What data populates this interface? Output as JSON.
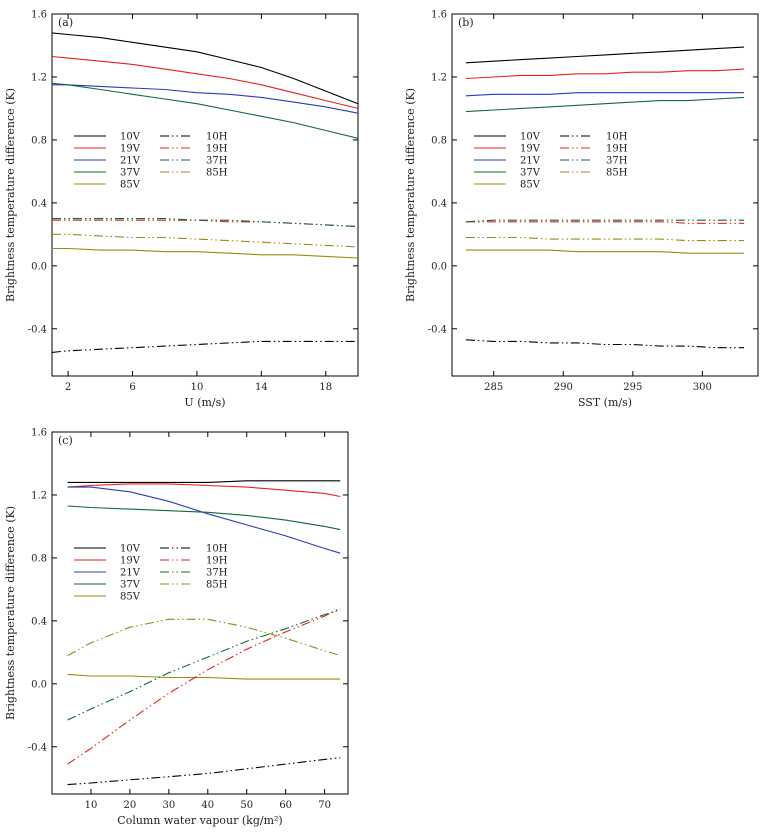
{
  "colors": {
    "10V": "#000000",
    "10H": "#000000",
    "19V": "#e8201c",
    "19H": "#e8201c",
    "21V": "#2b3bbf",
    "37V": "#0f6b3a",
    "37H": "#0f6b3a",
    "85V": "#9a8a10",
    "85H": "#9a8a10"
  },
  "chart_data": [
    {
      "type": "line",
      "panel": "(a)",
      "title": "",
      "xlabel": "U (m/s)",
      "ylabel": "Brightness temperature difference (K)",
      "xlim": [
        1,
        20
      ],
      "ylim": [
        -0.7,
        1.6
      ],
      "xticks": [
        2,
        6,
        10,
        14,
        18
      ],
      "yticks": [
        -0.4,
        0.0,
        0.4,
        0.8,
        1.2,
        1.6
      ],
      "ytick_labels": [
        "-0.4",
        "0.0",
        "0.4",
        "0.8",
        "1.2",
        "1.6"
      ],
      "x": [
        1,
        2,
        4,
        6,
        8,
        10,
        12,
        14,
        16,
        18,
        20
      ],
      "legend": [
        "10V",
        "19V",
        "21V",
        "37V",
        "85V",
        "10H",
        "19H",
        "37H",
        "85H"
      ],
      "series": [
        {
          "name": "10V",
          "style": "solid",
          "values": [
            1.48,
            1.47,
            1.45,
            1.42,
            1.39,
            1.36,
            1.31,
            1.26,
            1.19,
            1.11,
            1.03
          ]
        },
        {
          "name": "19V",
          "style": "solid",
          "values": [
            1.33,
            1.32,
            1.3,
            1.28,
            1.25,
            1.22,
            1.19,
            1.15,
            1.1,
            1.05,
            1.0
          ]
        },
        {
          "name": "21V",
          "style": "solid",
          "values": [
            1.15,
            1.15,
            1.14,
            1.13,
            1.12,
            1.1,
            1.09,
            1.07,
            1.04,
            1.01,
            0.97
          ]
        },
        {
          "name": "37V",
          "style": "solid",
          "values": [
            1.16,
            1.15,
            1.12,
            1.09,
            1.06,
            1.03,
            0.99,
            0.95,
            0.91,
            0.86,
            0.81
          ]
        },
        {
          "name": "85V",
          "style": "solid",
          "values": [
            0.11,
            0.11,
            0.1,
            0.1,
            0.09,
            0.09,
            0.08,
            0.07,
            0.07,
            0.06,
            0.05
          ]
        },
        {
          "name": "10H",
          "style": "dash-dot-dot",
          "values": [
            -0.55,
            -0.54,
            -0.53,
            -0.52,
            -0.51,
            -0.5,
            -0.49,
            -0.48,
            -0.48,
            -0.48,
            -0.48
          ]
        },
        {
          "name": "19H",
          "style": "dash-dot-dot",
          "values": [
            0.29,
            0.29,
            0.29,
            0.29,
            0.29,
            0.29,
            0.28,
            0.28,
            0.27,
            0.26,
            0.25
          ]
        },
        {
          "name": "37H",
          "style": "dash-dot-dot",
          "values": [
            0.3,
            0.3,
            0.3,
            0.3,
            0.3,
            0.29,
            0.29,
            0.28,
            0.27,
            0.26,
            0.25
          ]
        },
        {
          "name": "85H",
          "style": "dash-dot-dot",
          "values": [
            0.2,
            0.2,
            0.19,
            0.18,
            0.18,
            0.17,
            0.16,
            0.15,
            0.14,
            0.13,
            0.12
          ]
        }
      ]
    },
    {
      "type": "line",
      "panel": "(b)",
      "title": "",
      "xlabel": "SST (m/s)",
      "ylabel": "Brightness temperature difference (K)",
      "xlim": [
        282,
        304
      ],
      "ylim": [
        -0.7,
        1.6
      ],
      "xticks": [
        285,
        290,
        295,
        300
      ],
      "yticks": [
        -0.4,
        0.0,
        0.4,
        0.8,
        1.2,
        1.6
      ],
      "ytick_labels": [
        "-0.4",
        "0.0",
        "0.4",
        "0.8",
        "1.2",
        "1.6"
      ],
      "x": [
        283,
        285,
        287,
        289,
        291,
        293,
        295,
        297,
        299,
        301,
        303
      ],
      "legend": [
        "10V",
        "19V",
        "21V",
        "37V",
        "85V",
        "10H",
        "19H",
        "37H",
        "85H"
      ],
      "series": [
        {
          "name": "10V",
          "style": "solid",
          "values": [
            1.29,
            1.3,
            1.31,
            1.32,
            1.33,
            1.34,
            1.35,
            1.36,
            1.37,
            1.38,
            1.39
          ]
        },
        {
          "name": "19V",
          "style": "solid",
          "values": [
            1.19,
            1.2,
            1.21,
            1.21,
            1.22,
            1.22,
            1.23,
            1.23,
            1.24,
            1.24,
            1.25
          ]
        },
        {
          "name": "21V",
          "style": "solid",
          "values": [
            1.08,
            1.09,
            1.09,
            1.09,
            1.1,
            1.1,
            1.1,
            1.1,
            1.1,
            1.1,
            1.1
          ]
        },
        {
          "name": "37V",
          "style": "solid",
          "values": [
            0.98,
            0.99,
            1.0,
            1.01,
            1.02,
            1.03,
            1.04,
            1.05,
            1.05,
            1.06,
            1.07
          ]
        },
        {
          "name": "85V",
          "style": "solid",
          "values": [
            0.1,
            0.1,
            0.1,
            0.1,
            0.09,
            0.09,
            0.09,
            0.09,
            0.08,
            0.08,
            0.08
          ]
        },
        {
          "name": "10H",
          "style": "dash-dot-dot",
          "values": [
            -0.47,
            -0.48,
            -0.48,
            -0.49,
            -0.49,
            -0.5,
            -0.5,
            -0.51,
            -0.51,
            -0.52,
            -0.52
          ]
        },
        {
          "name": "19H",
          "style": "dash-dot-dot",
          "values": [
            0.28,
            0.28,
            0.28,
            0.28,
            0.28,
            0.28,
            0.28,
            0.28,
            0.27,
            0.27,
            0.27
          ]
        },
        {
          "name": "37H",
          "style": "dash-dot-dot",
          "values": [
            0.28,
            0.29,
            0.29,
            0.29,
            0.29,
            0.29,
            0.29,
            0.29,
            0.29,
            0.29,
            0.29
          ]
        },
        {
          "name": "85H",
          "style": "dash-dot-dot",
          "values": [
            0.18,
            0.18,
            0.18,
            0.17,
            0.17,
            0.17,
            0.17,
            0.17,
            0.16,
            0.16,
            0.16
          ]
        }
      ]
    },
    {
      "type": "line",
      "panel": "(c)",
      "title": "",
      "xlabel": "Column water vapour (kg/m²)",
      "ylabel": "Brightness temperature difference (K)",
      "xlim": [
        0,
        76
      ],
      "ylim": [
        -0.7,
        1.6
      ],
      "xticks": [
        10,
        20,
        30,
        40,
        50,
        60,
        70
      ],
      "yticks": [
        -0.4,
        0.0,
        0.4,
        0.8,
        1.2,
        1.6
      ],
      "ytick_labels": [
        "-0.4",
        "0.0",
        "0.4",
        "0.8",
        "1.2",
        "1.6"
      ],
      "x": [
        4,
        10,
        20,
        30,
        40,
        50,
        60,
        70,
        74
      ],
      "legend": [
        "10V",
        "19V",
        "21V",
        "37V",
        "85V",
        "10H",
        "19H",
        "37H",
        "85H"
      ],
      "series": [
        {
          "name": "10V",
          "style": "solid",
          "values": [
            1.28,
            1.28,
            1.28,
            1.28,
            1.28,
            1.29,
            1.29,
            1.29,
            1.29
          ]
        },
        {
          "name": "19V",
          "style": "solid",
          "values": [
            1.25,
            1.26,
            1.27,
            1.27,
            1.26,
            1.25,
            1.23,
            1.21,
            1.19
          ]
        },
        {
          "name": "21V",
          "style": "solid",
          "values": [
            1.25,
            1.25,
            1.22,
            1.16,
            1.08,
            1.01,
            0.94,
            0.86,
            0.83
          ]
        },
        {
          "name": "37V",
          "style": "solid",
          "values": [
            1.13,
            1.12,
            1.11,
            1.1,
            1.09,
            1.07,
            1.04,
            1.0,
            0.98
          ]
        },
        {
          "name": "85V",
          "style": "solid",
          "values": [
            0.06,
            0.05,
            0.05,
            0.04,
            0.04,
            0.03,
            0.03,
            0.03,
            0.03
          ]
        },
        {
          "name": "10H",
          "style": "dash-dot-dot",
          "values": [
            -0.64,
            -0.63,
            -0.61,
            -0.59,
            -0.57,
            -0.54,
            -0.51,
            -0.48,
            -0.47
          ]
        },
        {
          "name": "19H",
          "style": "dash-dot-dot",
          "values": [
            -0.51,
            -0.41,
            -0.23,
            -0.06,
            0.09,
            0.22,
            0.33,
            0.43,
            0.48
          ]
        },
        {
          "name": "37H",
          "style": "dash-dot-dot",
          "values": [
            -0.23,
            -0.16,
            -0.05,
            0.07,
            0.17,
            0.27,
            0.35,
            0.44,
            0.47
          ]
        },
        {
          "name": "85H",
          "style": "dash-dot-dot",
          "values": [
            0.18,
            0.26,
            0.36,
            0.41,
            0.41,
            0.36,
            0.29,
            0.21,
            0.18
          ]
        }
      ]
    }
  ]
}
